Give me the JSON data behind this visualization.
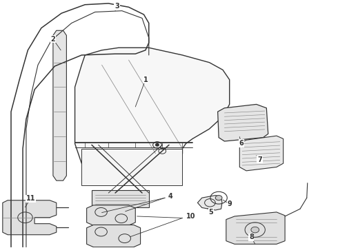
{
  "bg_color": "#ffffff",
  "line_color": "#333333",
  "fill_light": "#f0f0f0",
  "fill_medium": "#e0e0e0",
  "labels": [
    "1",
    "2",
    "3",
    "4",
    "5",
    "6",
    "7",
    "8",
    "9",
    "10",
    "11"
  ]
}
